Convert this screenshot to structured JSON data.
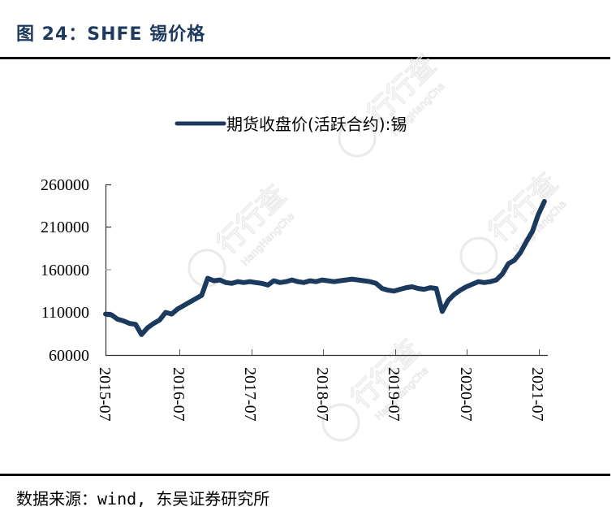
{
  "figure": {
    "title": "图 24：SHFE 锡价格",
    "source": "数据来源：wind, 东吴证券研究所"
  },
  "watermark": {
    "text_cn": "行行查",
    "text_en": "HangHangCha"
  },
  "chart_data": {
    "type": "line",
    "title": "图 24：SHFE 锡价格",
    "xlabel": "",
    "ylabel": "",
    "ylim": [
      60000,
      260000
    ],
    "yticks": [
      60000,
      110000,
      160000,
      210000,
      260000
    ],
    "ytick_labels": [
      "60000",
      "110000",
      "160000",
      "210000",
      "260000"
    ],
    "xtick_labels": [
      "2015-07",
      "2016-07",
      "2017-07",
      "2018-07",
      "2019-07",
      "2020-07",
      "2021-07"
    ],
    "grid": false,
    "legend_position": "top-center",
    "series": [
      {
        "name": "期货收盘价(活跃合约):锡",
        "color": "#1b3a5e",
        "x": [
          "2015-07",
          "2015-08",
          "2015-09",
          "2015-10",
          "2015-11",
          "2015-12",
          "2016-01",
          "2016-02",
          "2016-03",
          "2016-04",
          "2016-05",
          "2016-06",
          "2016-07",
          "2016-08",
          "2016-09",
          "2016-10",
          "2016-11",
          "2016-12",
          "2017-01",
          "2017-02",
          "2017-03",
          "2017-04",
          "2017-05",
          "2017-06",
          "2017-07",
          "2017-08",
          "2017-09",
          "2017-10",
          "2017-11",
          "2017-12",
          "2018-01",
          "2018-02",
          "2018-03",
          "2018-04",
          "2018-05",
          "2018-06",
          "2018-07",
          "2018-08",
          "2018-09",
          "2018-10",
          "2018-11",
          "2018-12",
          "2019-01",
          "2019-02",
          "2019-03",
          "2019-04",
          "2019-05",
          "2019-06",
          "2019-07",
          "2019-08",
          "2019-09",
          "2019-10",
          "2019-11",
          "2019-12",
          "2020-01",
          "2020-02",
          "2020-03",
          "2020-04",
          "2020-05",
          "2020-06",
          "2020-07",
          "2020-08",
          "2020-09",
          "2020-10",
          "2020-11",
          "2020-12",
          "2021-01",
          "2021-02",
          "2021-03",
          "2021-04",
          "2021-05",
          "2021-06",
          "2021-07",
          "2021-08"
        ],
        "values": [
          108000,
          107000,
          102000,
          100000,
          97000,
          96000,
          84000,
          92000,
          97000,
          101000,
          110000,
          108000,
          114000,
          118000,
          122000,
          126000,
          130000,
          150000,
          147000,
          148000,
          145000,
          144000,
          146000,
          145000,
          146000,
          145000,
          144000,
          142000,
          147000,
          145000,
          146000,
          148000,
          146000,
          145000,
          147000,
          146000,
          148000,
          147000,
          146000,
          147000,
          148000,
          149000,
          148000,
          147000,
          146000,
          144000,
          138000,
          136000,
          135000,
          137000,
          139000,
          140000,
          138000,
          137000,
          139000,
          138000,
          111000,
          124000,
          131000,
          136000,
          140000,
          143000,
          146000,
          145000,
          146000,
          148000,
          155000,
          167000,
          171000,
          180000,
          193000,
          205000,
          225000,
          240000
        ]
      }
    ]
  }
}
